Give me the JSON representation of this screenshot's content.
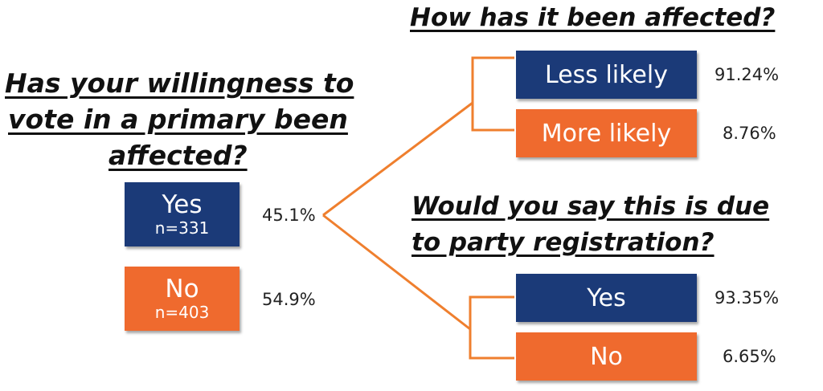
{
  "colors": {
    "navy": "#1b3a78",
    "orange": "#ef6a2e",
    "connector": "#ef7f2e"
  },
  "left_panel": {
    "question": [
      "Has your willingness to",
      "vote in a primary been",
      "affected?"
    ],
    "options": [
      {
        "label": "Yes",
        "n": "n=331",
        "percent": "45.1%",
        "color": "#1b3a78"
      },
      {
        "label": "No",
        "n": "n=403",
        "percent": "54.9%",
        "color": "#ef6a2e"
      }
    ]
  },
  "top_right_panel": {
    "question": "How has it been affected?",
    "options": [
      {
        "label": "Less likely",
        "percent": "91.24%",
        "color": "#1b3a78"
      },
      {
        "label": "More likely",
        "percent": "8.76%",
        "color": "#ef6a2e"
      }
    ]
  },
  "bottom_right_panel": {
    "question": [
      "Would you say this is due",
      "to party registration?"
    ],
    "options": [
      {
        "label": "Yes",
        "percent": "93.35%",
        "color": "#1b3a78"
      },
      {
        "label": "No",
        "percent": "6.65%",
        "color": "#ef6a2e"
      }
    ]
  }
}
